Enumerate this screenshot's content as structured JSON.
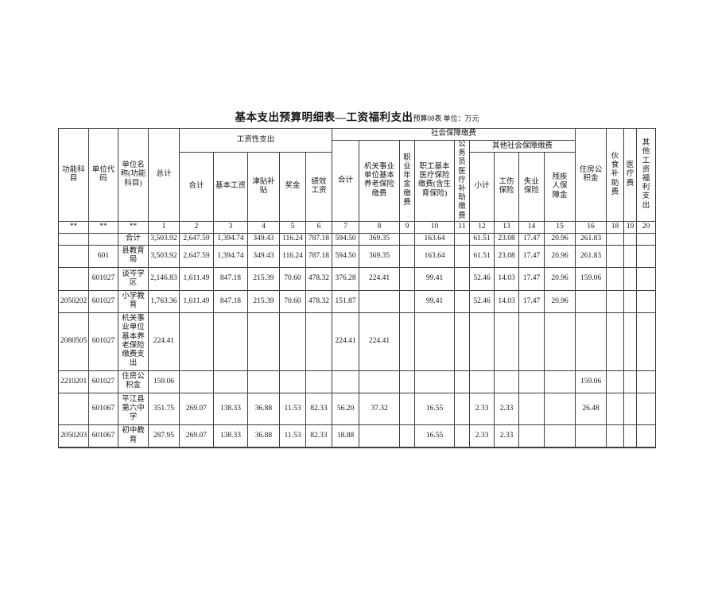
{
  "page": {
    "title": "基本支出预算明细表—工资福利支出",
    "table_code": "预算08表",
    "unit_note": "单位：万元"
  },
  "table": {
    "headers": {
      "func_subject": "功能科目",
      "unit_code": "单位代码",
      "unit_name": "单位名称(功能科目)",
      "grand_total": "总计",
      "salary_group": "工资性支出",
      "salary": {
        "subtotal": "合计",
        "base": "基本工资",
        "allowance": "津贴补贴",
        "bonus": "奖金",
        "performance": "绩效工资"
      },
      "social_group": "社会保障缴费",
      "social": {
        "subtotal": "合计",
        "pension": "机关事业单位基本养老保险缴费",
        "annuity": "职业年金缴费",
        "medical": "职工基本医疗保险缴费(含生育保险)",
        "civil_servant_medical": "公务员医疗补助缴费"
      },
      "other_social_group": "其他社会保障缴费",
      "other_social": {
        "subtotal": "小计",
        "injury": "工伤保险",
        "unemployment": "失业保险",
        "disability": "残疾人保障金"
      },
      "housing_fund": "住房公积金",
      "meal_allowance": "伙食补助费",
      "medical_fee": "医疗费",
      "other_welfare": "其他工资福利支出"
    },
    "col_numbers": [
      "**",
      "**",
      "**",
      "1",
      "2",
      "3",
      "4",
      "5",
      "6",
      "7",
      "8",
      "9",
      "10",
      "11",
      "12",
      "13",
      "14",
      "15",
      "16",
      "18",
      "19",
      "20"
    ],
    "rows": [
      {
        "cells": [
          "",
          "",
          "合计",
          "3,503.92",
          "2,647.59",
          "1,394.74",
          "349.43",
          "116.24",
          "787.18",
          "594.50",
          "369.35",
          "",
          "163.64",
          "",
          "61.51",
          "23.08",
          "17.47",
          "20.96",
          "261.83",
          "",
          "",
          ""
        ]
      },
      {
        "cells": [
          "",
          "601",
          "县教育局",
          "3,503.92",
          "2,647.59",
          "1,394.74",
          "349.43",
          "116.24",
          "787.18",
          "594.50",
          "369.35",
          "",
          "163.64",
          "",
          "61.51",
          "23.08",
          "17.47",
          "20.96",
          "261.83",
          "",
          "",
          ""
        ]
      },
      {
        "cells": [
          "",
          "601027",
          "谈岑学区",
          "2,146.83",
          "1,611.49",
          "847.18",
          "215.39",
          "70.60",
          "478.32",
          "376.28",
          "224.41",
          "",
          "99.41",
          "",
          "52.46",
          "14.03",
          "17.47",
          "20.96",
          "159.06",
          "",
          "",
          ""
        ]
      },
      {
        "cells": [
          "2050202",
          "601027",
          "小学教育",
          "1,763.36",
          "1,611.49",
          "847.18",
          "215.39",
          "70.60",
          "478.32",
          "151.87",
          "",
          "",
          "99.41",
          "",
          "52.46",
          "14.03",
          "17.47",
          "20.96",
          "",
          "",
          "",
          ""
        ]
      },
      {
        "cells": [
          "2080505",
          "601027",
          "机关事业单位基本养老保险缴费支出",
          "224.41",
          "",
          "",
          "",
          "",
          "",
          "224.41",
          "224.41",
          "",
          "",
          "",
          "",
          "",
          "",
          "",
          "",
          "",
          "",
          ""
        ]
      },
      {
        "cells": [
          "2210201",
          "601027",
          "住房公积金",
          "159.06",
          "",
          "",
          "",
          "",
          "",
          "",
          "",
          "",
          "",
          "",
          "",
          "",
          "",
          "",
          "159.06",
          "",
          "",
          ""
        ]
      },
      {
        "cells": [
          "",
          "601067",
          "平江县第六中学",
          "351.75",
          "269.07",
          "138.33",
          "36.88",
          "11.53",
          "82.33",
          "56.20",
          "37.32",
          "",
          "16.55",
          "",
          "2.33",
          "2.33",
          "",
          "",
          "26.48",
          "",
          "",
          ""
        ]
      },
      {
        "cells": [
          "2050203",
          "601067",
          "初中教育",
          "287.95",
          "269.07",
          "138.33",
          "36.88",
          "11.53",
          "82.33",
          "18.88",
          "",
          "",
          "16.55",
          "",
          "2.33",
          "2.33",
          "",
          "",
          "",
          "",
          "",
          ""
        ]
      }
    ]
  }
}
